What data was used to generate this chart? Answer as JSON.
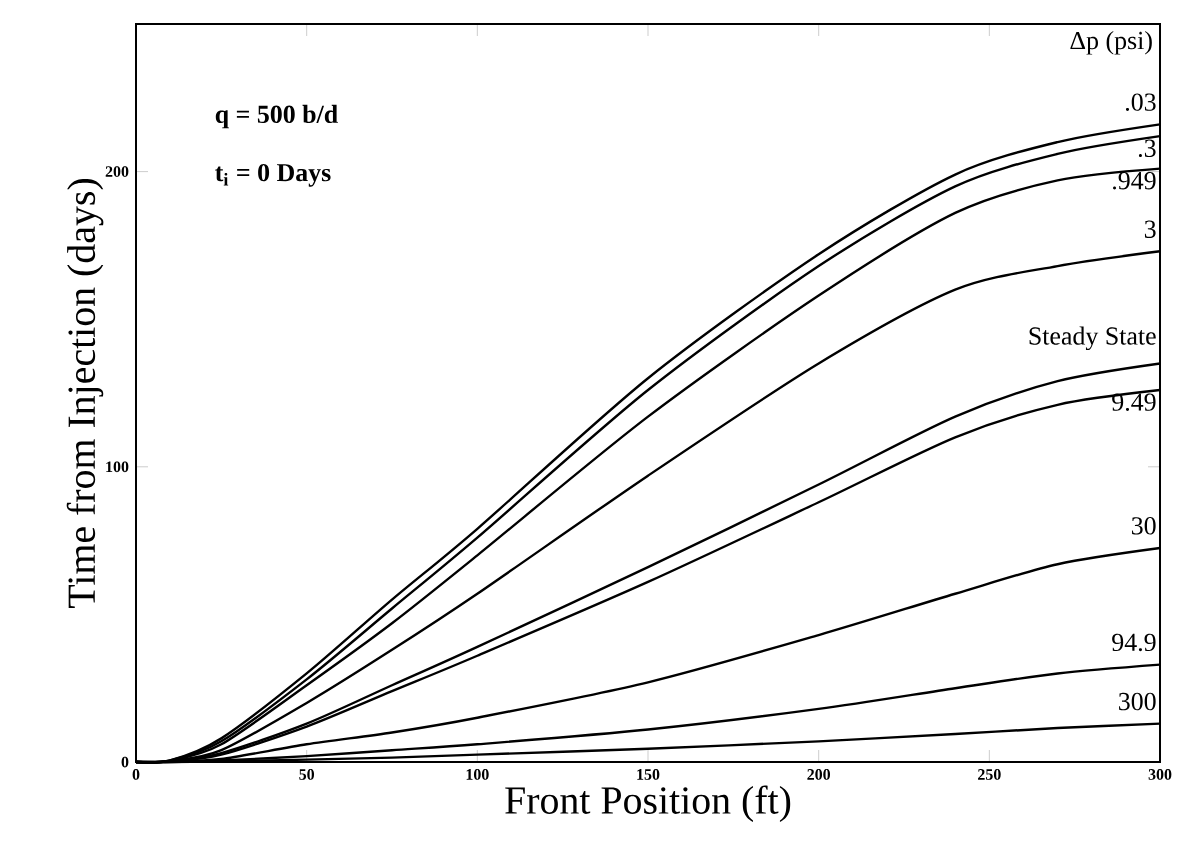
{
  "chart_data": {
    "type": "line",
    "xlabel": "Front Position (ft)",
    "ylabel": "Time from Injection (days)",
    "legend_title": "Δp (psi)",
    "annotations": [
      "q = 500 b/d",
      "t$_{i}$ = 0 Days"
    ],
    "x": [
      0,
      10,
      25,
      50,
      75,
      100,
      150,
      200,
      240,
      270,
      300
    ],
    "xlim": [
      0,
      300
    ],
    "ylim": [
      0,
      250
    ],
    "xticks": [
      0,
      50,
      100,
      150,
      200,
      250,
      300
    ],
    "yticks": [
      0,
      100,
      200
    ],
    "grid": false,
    "marker": "none",
    "line_style": "solid",
    "series": [
      {
        "name": ".03",
        "color": "#000000",
        "values": [
          0,
          0.5,
          8,
          30,
          55,
          79,
          130,
          172,
          199,
          210,
          216
        ]
      },
      {
        "name": ".3",
        "color": "#000000",
        "values": [
          0,
          0.5,
          7,
          28,
          52,
          76,
          126,
          168,
          195,
          206,
          212
        ]
      },
      {
        "name": ".949",
        "color": "#000000",
        "values": [
          0,
          0.4,
          6,
          26,
          47,
          70,
          117,
          158,
          186,
          197,
          201
        ]
      },
      {
        "name": "3",
        "color": "#000000",
        "values": [
          0,
          0.3,
          4,
          20,
          38,
          57,
          97,
          135,
          160,
          168,
          173
        ]
      },
      {
        "name": "Steady State",
        "color": "#000000",
        "values": [
          0,
          0.2,
          3,
          13,
          26,
          39,
          66,
          94,
          117,
          129,
          135
        ]
      },
      {
        "name": "9.49",
        "color": "#000000",
        "values": [
          0,
          0.2,
          2.5,
          12,
          24,
          36,
          61,
          88,
          110,
          121,
          126
        ]
      },
      {
        "name": "30",
        "color": "#000000",
        "values": [
          0,
          0.1,
          1,
          6,
          10,
          15,
          27,
          43,
          57,
          67,
          72.5
        ]
      },
      {
        "name": "94.9",
        "color": "#000000",
        "values": [
          0,
          0,
          0.5,
          2,
          4,
          6,
          11,
          18,
          25,
          30,
          33
        ]
      },
      {
        "name": "300",
        "color": "#000000",
        "values": [
          0,
          0,
          0.2,
          0.8,
          1.5,
          2.5,
          4.5,
          7,
          9.5,
          11.5,
          13
        ]
      }
    ]
  }
}
